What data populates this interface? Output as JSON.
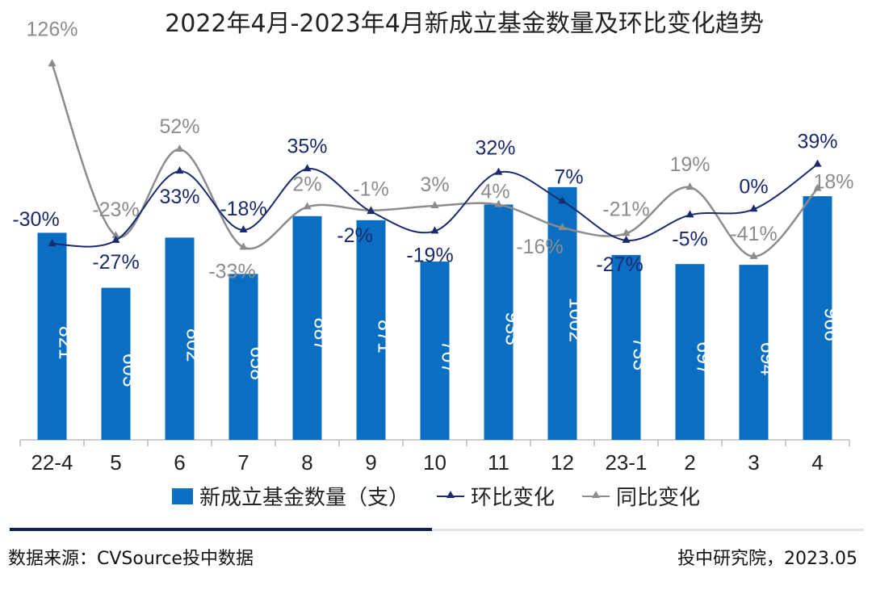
{
  "chart_data": {
    "type": "bar+line",
    "title": "2022年4月-2023年4月新成立基金数量及环比变化趋势",
    "categories": [
      "22-4",
      "5",
      "6",
      "7",
      "8",
      "9",
      "10",
      "11",
      "12",
      "23-1",
      "2",
      "3",
      "4"
    ],
    "ylim": [
      0,
      1600
    ],
    "y2lim": [
      -200,
      150
    ],
    "grid": false,
    "legend_position": "bottom",
    "series": [
      {
        "name": "新成立基金数量（支）",
        "type": "bar",
        "color": "#0a6fc2",
        "values": [
          821,
          603,
          802,
          658,
          887,
          871,
          707,
          933,
          1002,
          733,
          697,
          694,
          966
        ]
      },
      {
        "name": "环比变化",
        "type": "line",
        "axis": "secondary",
        "color": "#1a2a6c",
        "marker": "triangle",
        "values": [
          -30,
          -27,
          33,
          -18,
          35,
          -2,
          -19,
          32,
          7,
          -27,
          -5,
          0,
          39
        ],
        "labels": [
          "-30%",
          "-27%",
          "33%",
          "-18%",
          "35%",
          "-2%",
          "-19%",
          "32%",
          "7%",
          "-27%",
          "-5%",
          "0%",
          "39%"
        ]
      },
      {
        "name": "同比变化",
        "type": "line",
        "axis": "secondary",
        "color": "#8c8c8c",
        "marker": "triangle",
        "values": [
          126,
          -23,
          52,
          -33,
          2,
          -1,
          3,
          4,
          -16,
          -21,
          19,
          -41,
          18
        ],
        "labels": [
          "126%",
          "-23%",
          "52%",
          "-33%",
          "2%",
          "-1%",
          "3%",
          "4%",
          "-16%",
          "-21%",
          "19%",
          "-41%",
          "18%"
        ]
      }
    ]
  },
  "footer": {
    "source": "数据来源：CVSource投中数据",
    "org": "投中研究院，2023.05"
  }
}
